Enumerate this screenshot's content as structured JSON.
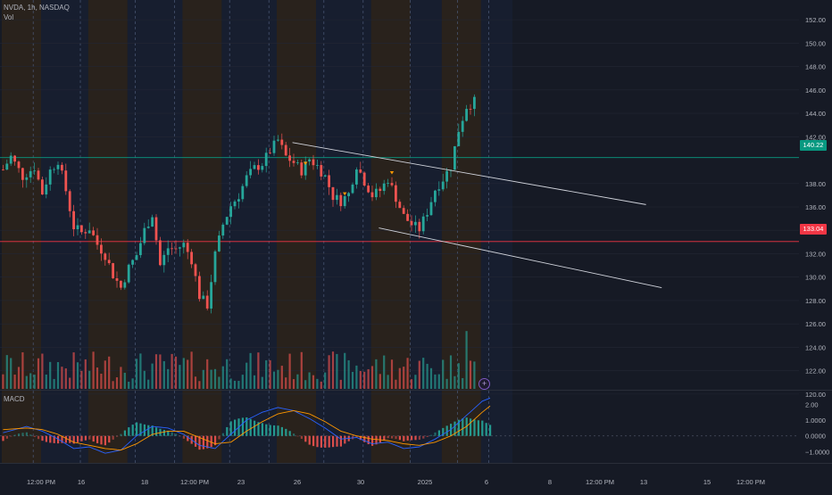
{
  "header": {
    "symbol_line": "NVDA, 1h, NASDAQ",
    "volume_label": "Vol",
    "macd_label": "MACD"
  },
  "price_scale": {
    "labels": [
      "152.00",
      "150.00",
      "148.00",
      "146.00",
      "144.00",
      "142.00",
      "138.00",
      "136.00",
      "134.00",
      "132.00",
      "130.00",
      "128.00",
      "126.00",
      "124.00",
      "122.00",
      "120.00"
    ],
    "values": [
      152,
      150,
      148,
      146,
      144,
      142,
      138,
      136,
      134,
      132,
      130,
      128,
      126,
      124,
      122,
      120
    ]
  },
  "macd_scale": {
    "labels": [
      "2.00",
      "1.0000",
      "0.0000",
      "−1.0000"
    ],
    "values": [
      2,
      1,
      0,
      -1
    ]
  },
  "time_axis": {
    "labels": [
      "12:00 PM",
      "16",
      "18",
      "12:00 PM",
      "23",
      "26",
      "30",
      "2025",
      "6",
      "8",
      "12:00 PM",
      "13",
      "15",
      "12:00 PM"
    ]
  },
  "levels": {
    "resistance": {
      "value": 140.22,
      "label": "140.22",
      "color": "#089981"
    },
    "support": {
      "value": 133.04,
      "label": "133.04",
      "color": "#f23645"
    }
  },
  "colors": {
    "up": "#26a69a",
    "down": "#ef5350",
    "macd_line": "#2962ff",
    "signal_line": "#ff9800",
    "background": "#161a25",
    "session_orange": "#3a2a16",
    "session_blue": "#1a2238"
  },
  "icons": {
    "add_indicator": "plus-circle-icon"
  },
  "chart_data": {
    "type": "candlestick",
    "symbol": "NVDA",
    "interval": "1h",
    "exchange": "NASDAQ",
    "price_range": [
      119,
      153
    ],
    "price_path": [
      [
        0,
        139.2
      ],
      [
        2,
        140.3
      ],
      [
        5,
        138.6
      ],
      [
        8,
        139.4
      ],
      [
        10,
        137.2
      ],
      [
        12,
        139.1
      ],
      [
        14,
        140.0
      ],
      [
        16,
        137.4
      ],
      [
        18,
        134.3
      ],
      [
        20,
        133.8
      ],
      [
        22,
        134.2
      ],
      [
        24,
        132.8
      ],
      [
        26,
        131.9
      ],
      [
        28,
        130.2
      ],
      [
        30,
        129.1
      ],
      [
        32,
        130.8
      ],
      [
        34,
        131.9
      ],
      [
        36,
        134.0
      ],
      [
        38,
        135.4
      ],
      [
        40,
        131.0
      ],
      [
        42,
        132.5
      ],
      [
        44,
        132.4
      ],
      [
        46,
        132.8
      ],
      [
        48,
        131.5
      ],
      [
        50,
        128.4
      ],
      [
        52,
        127.6
      ],
      [
        54,
        131.9
      ],
      [
        56,
        134.5
      ],
      [
        58,
        136.1
      ],
      [
        60,
        137.0
      ],
      [
        62,
        138.5
      ],
      [
        64,
        139.3
      ],
      [
        66,
        139.7
      ],
      [
        68,
        140.8
      ],
      [
        70,
        141.7
      ],
      [
        72,
        140.3
      ],
      [
        74,
        139.8
      ],
      [
        76,
        139.1
      ],
      [
        78,
        140.1
      ],
      [
        80,
        139.5
      ],
      [
        82,
        138.6
      ],
      [
        84,
        136.9
      ],
      [
        86,
        136.5
      ],
      [
        88,
        137.1
      ],
      [
        90,
        139.6
      ],
      [
        92,
        138.2
      ],
      [
        94,
        137.0
      ],
      [
        96,
        137.4
      ],
      [
        98,
        138.4
      ],
      [
        100,
        136.8
      ],
      [
        102,
        135.2
      ],
      [
        104,
        134.5
      ],
      [
        106,
        134.1
      ],
      [
        108,
        135.6
      ],
      [
        110,
        137.5
      ],
      [
        112,
        138.4
      ],
      [
        114,
        139.5
      ],
      [
        116,
        142.6
      ],
      [
        118,
        144.6
      ],
      [
        120,
        145.0
      ]
    ],
    "trend_upper": [
      [
        74,
        141.5
      ],
      [
        164,
        136.2
      ]
    ],
    "trend_lower": [
      [
        96,
        134.2
      ],
      [
        168,
        129.1
      ]
    ],
    "markers": [
      [
        77,
        139.7
      ],
      [
        87,
        137.1
      ],
      [
        99,
        138.9
      ]
    ],
    "macd_range": [
      -1.6,
      2.7
    ],
    "macd_line": [
      [
        0,
        0.2
      ],
      [
        6,
        0.6
      ],
      [
        10,
        0.3
      ],
      [
        14,
        -0.2
      ],
      [
        18,
        -0.8
      ],
      [
        22,
        -0.7
      ],
      [
        26,
        -1.1
      ],
      [
        30,
        -0.9
      ],
      [
        34,
        0.0
      ],
      [
        38,
        0.6
      ],
      [
        42,
        0.5
      ],
      [
        46,
        0.1
      ],
      [
        50,
        -0.6
      ],
      [
        54,
        -0.8
      ],
      [
        58,
        0.1
      ],
      [
        62,
        1.0
      ],
      [
        66,
        1.5
      ],
      [
        70,
        1.8
      ],
      [
        74,
        1.6
      ],
      [
        78,
        1.1
      ],
      [
        82,
        0.5
      ],
      [
        86,
        -0.2
      ],
      [
        90,
        -0.1
      ],
      [
        94,
        -0.5
      ],
      [
        98,
        -0.4
      ],
      [
        102,
        -0.8
      ],
      [
        106,
        -0.7
      ],
      [
        110,
        -0.2
      ],
      [
        114,
        0.4
      ],
      [
        118,
        1.3
      ],
      [
        122,
        2.2
      ],
      [
        124,
        2.4
      ]
    ],
    "signal_line": [
      [
        0,
        0.4
      ],
      [
        6,
        0.5
      ],
      [
        10,
        0.4
      ],
      [
        14,
        0.1
      ],
      [
        18,
        -0.4
      ],
      [
        22,
        -0.6
      ],
      [
        26,
        -0.8
      ],
      [
        30,
        -0.9
      ],
      [
        34,
        -0.5
      ],
      [
        38,
        0.1
      ],
      [
        42,
        0.3
      ],
      [
        46,
        0.3
      ],
      [
        50,
        -0.1
      ],
      [
        54,
        -0.5
      ],
      [
        58,
        -0.4
      ],
      [
        62,
        0.3
      ],
      [
        66,
        0.9
      ],
      [
        70,
        1.4
      ],
      [
        74,
        1.6
      ],
      [
        78,
        1.4
      ],
      [
        82,
        0.9
      ],
      [
        86,
        0.3
      ],
      [
        90,
        0.0
      ],
      [
        94,
        -0.2
      ],
      [
        98,
        -0.3
      ],
      [
        102,
        -0.5
      ],
      [
        106,
        -0.6
      ],
      [
        110,
        -0.4
      ],
      [
        114,
        0.0
      ],
      [
        118,
        0.6
      ],
      [
        122,
        1.5
      ],
      [
        124,
        1.9
      ]
    ]
  }
}
